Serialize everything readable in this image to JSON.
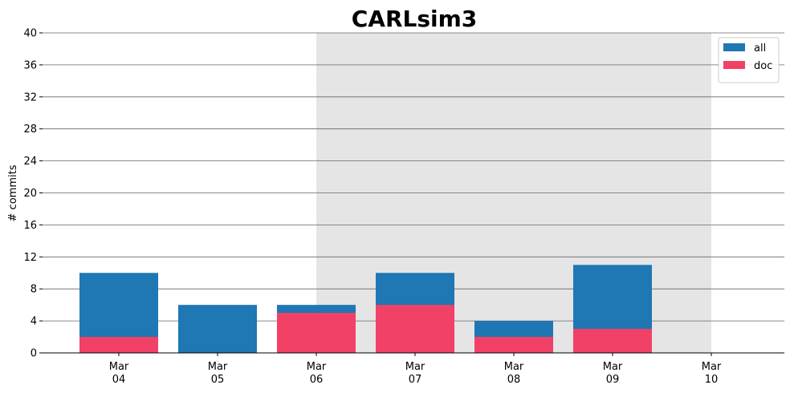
{
  "chart_data": {
    "type": "bar",
    "title": "CARLsim3",
    "xlabel": "",
    "ylabel": "# commits",
    "ylim": [
      0,
      40
    ],
    "yticks": [
      0,
      4,
      8,
      12,
      16,
      20,
      24,
      28,
      32,
      36,
      40
    ],
    "categories": [
      {
        "month": "Mar",
        "day": "04"
      },
      {
        "month": "Mar",
        "day": "05"
      },
      {
        "month": "Mar",
        "day": "06"
      },
      {
        "month": "Mar",
        "day": "07"
      },
      {
        "month": "Mar",
        "day": "08"
      },
      {
        "month": "Mar",
        "day": "09"
      },
      {
        "month": "Mar",
        "day": "10"
      }
    ],
    "series": [
      {
        "name": "all",
        "color": "#1f77b4",
        "values": [
          10,
          6,
          6,
          10,
          4,
          11,
          0
        ]
      },
      {
        "name": "doc",
        "color": "#f24166",
        "values": [
          2,
          0,
          5,
          6,
          2,
          3,
          0
        ]
      }
    ],
    "shaded_region": {
      "x_start": "Mar 06",
      "x_end": "Mar 10",
      "color": "#e5e5e5"
    },
    "grid": {
      "y": true,
      "x": false,
      "color": "#666666"
    },
    "legend_position": "top-right"
  }
}
